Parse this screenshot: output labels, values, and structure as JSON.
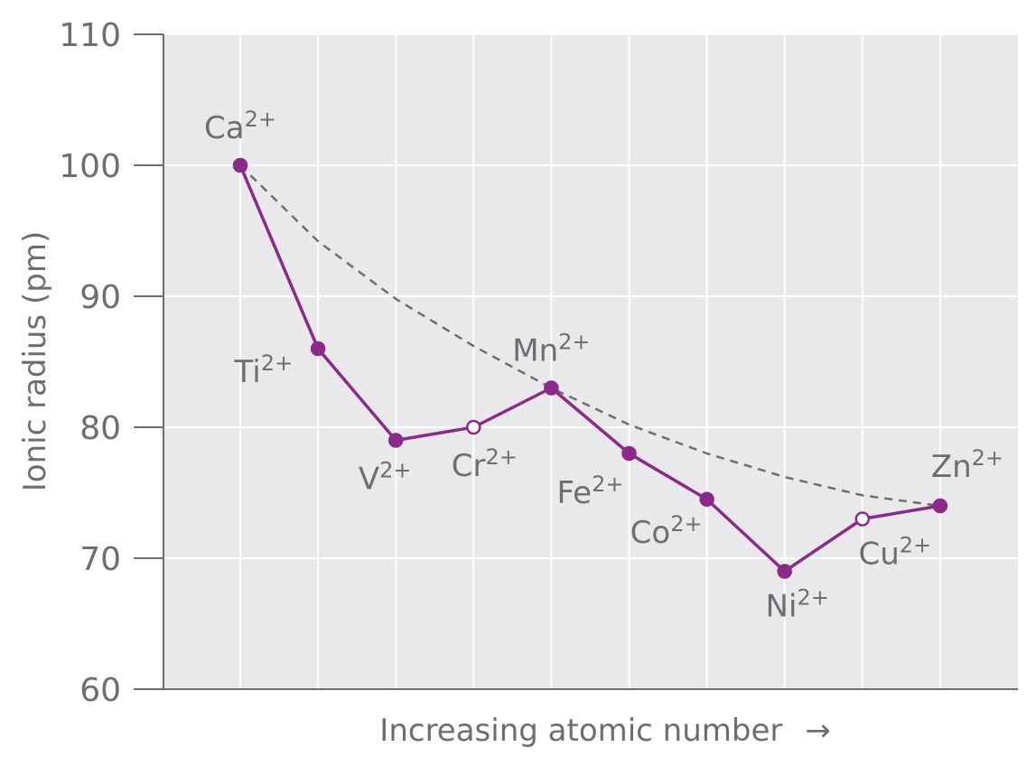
{
  "chart_data": {
    "type": "line",
    "title": "",
    "xlabel": "Increasing atomic number",
    "xlabel_arrow": "→",
    "ylabel": "Ionic radius (pm)",
    "ylim": [
      60,
      110
    ],
    "yticks": [
      60,
      70,
      80,
      90,
      100,
      110
    ],
    "grid": true,
    "categories": [
      {
        "base": "Ca",
        "charge": "2+"
      },
      {
        "base": "Ti",
        "charge": "2+"
      },
      {
        "base": "V",
        "charge": "2+"
      },
      {
        "base": "Cr",
        "charge": "2+"
      },
      {
        "base": "Mn",
        "charge": "2+"
      },
      {
        "base": "Fe",
        "charge": "2+"
      },
      {
        "base": "Co",
        "charge": "2+"
      },
      {
        "base": "Ni",
        "charge": "2+"
      },
      {
        "base": "Cu",
        "charge": "2+"
      },
      {
        "base": "Zn",
        "charge": "2+"
      }
    ],
    "series": [
      {
        "values": [
          100,
          86,
          79,
          80,
          83,
          78,
          74.5,
          69,
          73,
          74
        ],
        "open_markers": [
          false,
          false,
          false,
          true,
          false,
          false,
          false,
          false,
          true,
          false
        ],
        "color": "#8b2a8b"
      },
      {
        "style": "dashed",
        "values": [
          100,
          94.2,
          89.8,
          86.2,
          83,
          80.2,
          78,
          76.2,
          74.8,
          74
        ],
        "color": "#6d6e71"
      }
    ],
    "colors": {
      "plot_background": "#e9e9eb",
      "grid": "#ffffff",
      "axis": "#6d6e71",
      "text": "#6d6e71"
    }
  }
}
